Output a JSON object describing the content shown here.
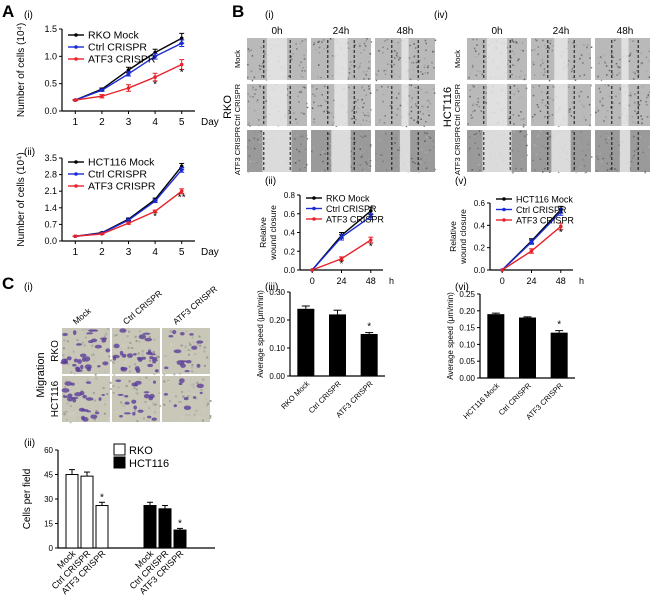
{
  "panels": {
    "A": "A",
    "B": "B",
    "C": "C"
  },
  "subpanels": {
    "A_i": "(i)",
    "A_ii": "(ii)",
    "B_i": "(i)",
    "B_iv": "(iv)",
    "B_ii": "(ii)",
    "B_v": "(v)",
    "B_iii": "(iii)",
    "B_vi": "(vi)",
    "C_i": "(i)",
    "C_ii": "(ii)"
  },
  "colors": {
    "mock": "#000000",
    "ctrl": "#1a2bd6",
    "atf3": "#e8232a",
    "bar": "#000000",
    "rko_bar": "#ffffff"
  },
  "micrographs": {
    "B_i": {
      "cols": [
        "0h",
        "24h",
        "48h"
      ],
      "rows": [
        "Mock",
        "Ctrl CRISPR",
        "ATF3 CRISPR"
      ],
      "cell_line": "RKO"
    },
    "B_iv": {
      "cols": [
        "0h",
        "24h",
        "48h"
      ],
      "rows": [
        "Mock",
        "Ctrl CRISPR",
        "ATF3 CRISPR"
      ],
      "cell_line": "HCT116"
    },
    "C_i": {
      "cols": [
        "Mock",
        "Ctrl CRISPR",
        "ATF3 CRISPR"
      ],
      "rows": [
        "RKO",
        "HCT116"
      ],
      "side_label": "Migration"
    }
  },
  "chart_data": [
    {
      "id": "A_i",
      "type": "line",
      "ylabel": "Number of cells (10⁴)",
      "xlabel": "Day",
      "x": [
        1,
        2,
        3,
        4,
        5
      ],
      "xlim": [
        0.5,
        5.5
      ],
      "ylim": [
        0,
        1.5
      ],
      "yticks": [
        "0.0",
        "0.5",
        "1.0",
        "1.5"
      ],
      "yticks_values": [
        0,
        0.5,
        1.0,
        1.5
      ],
      "series": [
        {
          "name": "RKO Mock",
          "color": "mock",
          "values": [
            0.2,
            0.4,
            0.75,
            1.07,
            1.33
          ],
          "err": [
            0.01,
            0.02,
            0.05,
            0.06,
            0.09
          ]
        },
        {
          "name": "Ctrl CRISPR",
          "color": "ctrl",
          "values": [
            0.2,
            0.38,
            0.68,
            1.0,
            1.24
          ],
          "err": [
            0.01,
            0.02,
            0.04,
            0.05,
            0.06
          ]
        },
        {
          "name": "ATF3 CRISPR",
          "color": "atf3",
          "values": [
            0.2,
            0.27,
            0.42,
            0.62,
            0.85
          ],
          "err": [
            0.01,
            0.03,
            0.06,
            0.07,
            0.09
          ]
        }
      ],
      "annotations": [
        {
          "x": 4,
          "y": 0.43,
          "text": "*"
        },
        {
          "x": 5,
          "y": 0.65,
          "text": "*"
        }
      ]
    },
    {
      "id": "A_ii",
      "type": "line",
      "ylabel": "Number of cells (10⁴)",
      "xlabel": "Day",
      "x": [
        1,
        2,
        3,
        4,
        5
      ],
      "xlim": [
        0.5,
        5.5
      ],
      "ylim": [
        0,
        3.5
      ],
      "yticks": [
        "0.0",
        "0.7",
        "1.4",
        "2.1",
        "2.8",
        "3.5"
      ],
      "yticks_values": [
        0,
        0.7,
        1.4,
        2.1,
        2.8,
        3.5
      ],
      "series": [
        {
          "name": "HCT116 Mock",
          "color": "mock",
          "values": [
            0.2,
            0.35,
            0.92,
            1.75,
            3.15
          ],
          "err": [
            0.01,
            0.02,
            0.05,
            0.06,
            0.12
          ]
        },
        {
          "name": "Ctrl CRISPR",
          "color": "ctrl",
          "values": [
            0.2,
            0.33,
            0.88,
            1.68,
            3.0
          ],
          "err": [
            0.01,
            0.02,
            0.05,
            0.06,
            0.1
          ]
        },
        {
          "name": "ATF3 CRISPR",
          "color": "atf3",
          "values": [
            0.2,
            0.3,
            0.75,
            1.25,
            2.1
          ],
          "err": [
            0.01,
            0.02,
            0.04,
            0.05,
            0.1
          ]
        }
      ],
      "annotations": [
        {
          "x": 4,
          "y": 0.9,
          "text": "*"
        },
        {
          "x": 5,
          "y": 1.7,
          "text": "**"
        }
      ]
    },
    {
      "id": "B_ii",
      "type": "line",
      "ylabel": "Relative wound closure",
      "xlabel": "h",
      "x": [
        0,
        24,
        48
      ],
      "xlim": [
        -10,
        58
      ],
      "ylim": [
        0,
        0.8
      ],
      "yticks": [
        "0.0",
        "0.2",
        "0.4",
        "0.6",
        "0.8"
      ],
      "yticks_values": [
        0,
        0.2,
        0.4,
        0.6,
        0.8
      ],
      "series": [
        {
          "name": "RKO Mock",
          "color": "mock",
          "values": [
            0,
            0.37,
            0.63
          ],
          "err": [
            0,
            0.03,
            0.04
          ]
        },
        {
          "name": "Ctrl CRISPR",
          "color": "ctrl",
          "values": [
            0,
            0.35,
            0.57
          ],
          "err": [
            0,
            0.03,
            0.03
          ]
        },
        {
          "name": "ATF3 CRISPR",
          "color": "atf3",
          "values": [
            0,
            0.12,
            0.32
          ],
          "err": [
            0,
            0.02,
            0.03
          ]
        }
      ],
      "annotations": [
        {
          "x": 24,
          "y": 0.03,
          "text": "*"
        },
        {
          "x": 48,
          "y": 0.22,
          "text": "*"
        }
      ]
    },
    {
      "id": "B_v",
      "type": "line",
      "ylabel": "Relative wound closure",
      "xlabel": "h",
      "x": [
        0,
        24,
        48
      ],
      "xlim": [
        -10,
        58
      ],
      "ylim": [
        0,
        0.6
      ],
      "yticks": [
        "0.0",
        "0.2",
        "0.4",
        "0.6"
      ],
      "yticks_values": [
        0,
        0.2,
        0.4,
        0.6
      ],
      "series": [
        {
          "name": "HCT116 Mock",
          "color": "mock",
          "values": [
            0,
            0.26,
            0.54
          ],
          "err": [
            0,
            0.02,
            0.03
          ]
        },
        {
          "name": "Ctrl CRISPR",
          "color": "ctrl",
          "values": [
            0,
            0.25,
            0.52
          ],
          "err": [
            0,
            0.02,
            0.03
          ]
        },
        {
          "name": "ATF3 CRISPR",
          "color": "atf3",
          "values": [
            0,
            0.17,
            0.39
          ],
          "err": [
            0,
            0.02,
            0.03
          ]
        }
      ],
      "annotations": [
        {
          "x": 48,
          "y": 0.31,
          "text": "*"
        }
      ]
    },
    {
      "id": "B_iii",
      "type": "bar",
      "ylabel": "Average speed (μm/min)",
      "categories": [
        "RKO Mock",
        "Ctrl CRISPR",
        "ATF3 CRISPR"
      ],
      "values": [
        0.24,
        0.22,
        0.15
      ],
      "err": [
        0.01,
        0.015,
        0.005
      ],
      "ylim": [
        0,
        0.3
      ],
      "yticks": [
        "0.00",
        "0.10",
        "0.20",
        "0.30"
      ],
      "yticks_values": [
        0,
        0.1,
        0.2,
        0.3
      ],
      "annotations": [
        {
          "index": 2,
          "text": "*"
        }
      ]
    },
    {
      "id": "B_vi",
      "type": "bar",
      "ylabel": "Average speed (μm/min)",
      "categories": [
        "HCT116 Mock",
        "Ctrl CRISPR",
        "ATF3 CRISPR"
      ],
      "values": [
        0.19,
        0.18,
        0.135
      ],
      "err": [
        0.003,
        0.002,
        0.006
      ],
      "ylim": [
        0,
        0.25
      ],
      "yticks": [
        "0.00",
        "0.05",
        "0.10",
        "0.15",
        "0.20",
        "0.25"
      ],
      "yticks_values": [
        0,
        0.05,
        0.1,
        0.15,
        0.2,
        0.25
      ],
      "annotations": [
        {
          "index": 2,
          "text": "*"
        }
      ]
    },
    {
      "id": "C_ii",
      "type": "bar",
      "ylabel": "Cells  per field",
      "categories": [
        "Mock",
        "Ctrl CRISPR",
        "ATF3 CRISPR"
      ],
      "series": [
        {
          "name": "RKO",
          "color": "rko_bar",
          "values": [
            45,
            44,
            26
          ],
          "err": [
            3,
            2.5,
            2
          ]
        },
        {
          "name": "HCT116",
          "color": "bar",
          "values": [
            26,
            24,
            11
          ],
          "err": [
            2,
            2,
            1
          ]
        }
      ],
      "ylim": [
        0,
        60
      ],
      "yticks": [
        "0",
        "15",
        "30",
        "45",
        "60"
      ],
      "yticks_values": [
        0,
        15,
        30,
        45,
        60
      ],
      "annotations": [
        {
          "series": 0,
          "index": 2,
          "text": "*"
        },
        {
          "series": 1,
          "index": 2,
          "text": "*"
        }
      ]
    }
  ]
}
